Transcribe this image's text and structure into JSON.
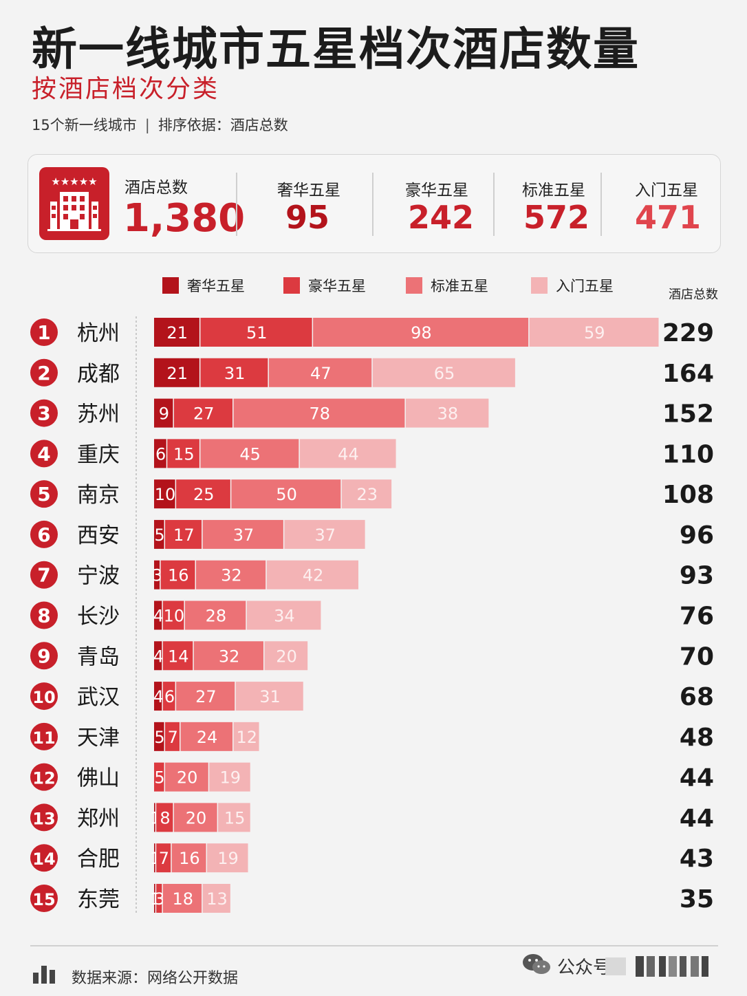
{
  "header": {
    "title": "新一线城市五星档次酒店数量",
    "subtitle": "按酒店档次分类",
    "meta_left": "15个新一线城市",
    "meta_sep": "|",
    "meta_right": "排序依据：酒店总数"
  },
  "summary": {
    "icon": "hotel-building-icon",
    "total_label": "酒店总数",
    "total_value": "1,380",
    "items": [
      {
        "label": "奢华五星",
        "value": "95",
        "color": "#b3131b"
      },
      {
        "label": "豪华五星",
        "value": "242",
        "color": "#c8202a"
      },
      {
        "label": "标准五星",
        "value": "572",
        "color": "#c8202a"
      },
      {
        "label": "入门五星",
        "value": "471",
        "color": "#e0454d"
      }
    ]
  },
  "legend": {
    "total_header": "酒店总数",
    "items": [
      {
        "label": "奢华五星",
        "color": "#b3131b"
      },
      {
        "label": "豪华五星",
        "color": "#dc3a40"
      },
      {
        "label": "标准五星",
        "color": "#ec7276"
      },
      {
        "label": "入门五星",
        "color": "#f3b3b5"
      }
    ]
  },
  "chart_data": {
    "type": "bar",
    "orientation": "horizontal",
    "stacked": true,
    "categories": [
      "杭州",
      "成都",
      "苏州",
      "重庆",
      "南京",
      "西安",
      "宁波",
      "长沙",
      "青岛",
      "武汉",
      "天津",
      "佛山",
      "郑州",
      "合肥",
      "东莞"
    ],
    "ranks": [
      "1",
      "2",
      "3",
      "4",
      "5",
      "6",
      "7",
      "8",
      "9",
      "10",
      "11",
      "12",
      "13",
      "14",
      "15"
    ],
    "series": [
      {
        "name": "奢华五星",
        "color": "#b3131b",
        "values": [
          21,
          21,
          9,
          6,
          10,
          5,
          3,
          4,
          4,
          4,
          5,
          0,
          1,
          1,
          1
        ]
      },
      {
        "name": "豪华五星",
        "color": "#dc3a40",
        "values": [
          51,
          31,
          27,
          15,
          25,
          17,
          16,
          10,
          14,
          6,
          7,
          5,
          8,
          7,
          3
        ]
      },
      {
        "name": "标准五星",
        "color": "#ec7276",
        "values": [
          98,
          47,
          78,
          45,
          50,
          37,
          32,
          28,
          32,
          27,
          24,
          20,
          20,
          16,
          18
        ]
      },
      {
        "name": "入门五星",
        "color": "#f3b3b5",
        "values": [
          59,
          65,
          38,
          44,
          23,
          37,
          42,
          34,
          20,
          31,
          12,
          19,
          15,
          19,
          13
        ]
      }
    ],
    "totals": [
      229,
      164,
      152,
      110,
      108,
      96,
      93,
      76,
      70,
      68,
      48,
      44,
      44,
      43,
      35
    ],
    "total_label": "酒店总数",
    "xlim": [
      0,
      229
    ],
    "legend_position": "top"
  },
  "footer": {
    "source": "数据来源：网络公开数据",
    "source_icon": "bar-chart-icon",
    "wechat_icon": "wechat-icon",
    "wechat_text": "公众号"
  }
}
